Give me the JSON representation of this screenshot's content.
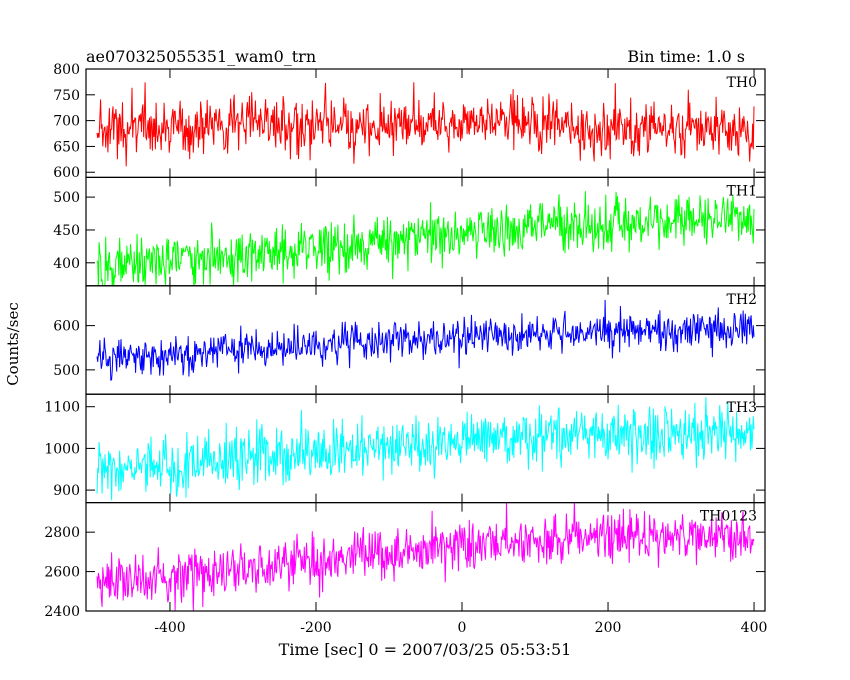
{
  "chart_data": {
    "type": "line",
    "title": "ae070325055351_wam0_trn",
    "subtitle": "Bin time: 1.0 s",
    "xlabel": "Time [sec] 0 = 2007/03/25 05:53:51",
    "ylabel": "Counts/sec",
    "xlim": [
      -515,
      415
    ],
    "x_ticks": [
      -400,
      -200,
      0,
      200,
      400
    ],
    "x_start": -500,
    "x_end": 400,
    "bin": 1.0,
    "panels": [
      {
        "name": "TH0",
        "color": "#ff0000",
        "ylim": [
          590,
          800
        ],
        "y_ticks": [
          600,
          650,
          700,
          750,
          800
        ],
        "trend": [
          [
            -500,
            680
          ],
          [
            -300,
            690
          ],
          [
            -100,
            697
          ],
          [
            100,
            693
          ],
          [
            400,
            680
          ]
        ],
        "noise": 28
      },
      {
        "name": "TH1",
        "color": "#00ff00",
        "ylim": [
          365,
          530
        ],
        "y_ticks": [
          400,
          450,
          500
        ],
        "trend": [
          [
            -500,
            393
          ],
          [
            -300,
            410
          ],
          [
            -100,
            433
          ],
          [
            100,
            455
          ],
          [
            400,
            470
          ]
        ],
        "noise": 20
      },
      {
        "name": "TH2",
        "color": "#0000ff",
        "ylim": [
          445,
          690
        ],
        "y_ticks": [
          500,
          600
        ],
        "trend": [
          [
            -500,
            522
          ],
          [
            -300,
            545
          ],
          [
            -100,
            565
          ],
          [
            100,
            582
          ],
          [
            400,
            596
          ]
        ],
        "noise": 22
      },
      {
        "name": "TH3",
        "color": "#00ffff",
        "ylim": [
          870,
          1130
        ],
        "y_ticks": [
          900,
          1000,
          1100
        ],
        "trend": [
          [
            -500,
            945
          ],
          [
            -300,
            970
          ],
          [
            -100,
            1000
          ],
          [
            100,
            1025
          ],
          [
            400,
            1035
          ]
        ],
        "noise": 35
      },
      {
        "name": "TH0123",
        "color": "#ff00ff",
        "ylim": [
          2400,
          2950
        ],
        "y_ticks": [
          2400,
          2600,
          2800
        ],
        "trend": [
          [
            -500,
            2530
          ],
          [
            -300,
            2610
          ],
          [
            -100,
            2700
          ],
          [
            100,
            2760
          ],
          [
            400,
            2785
          ]
        ],
        "noise": 65
      }
    ]
  }
}
